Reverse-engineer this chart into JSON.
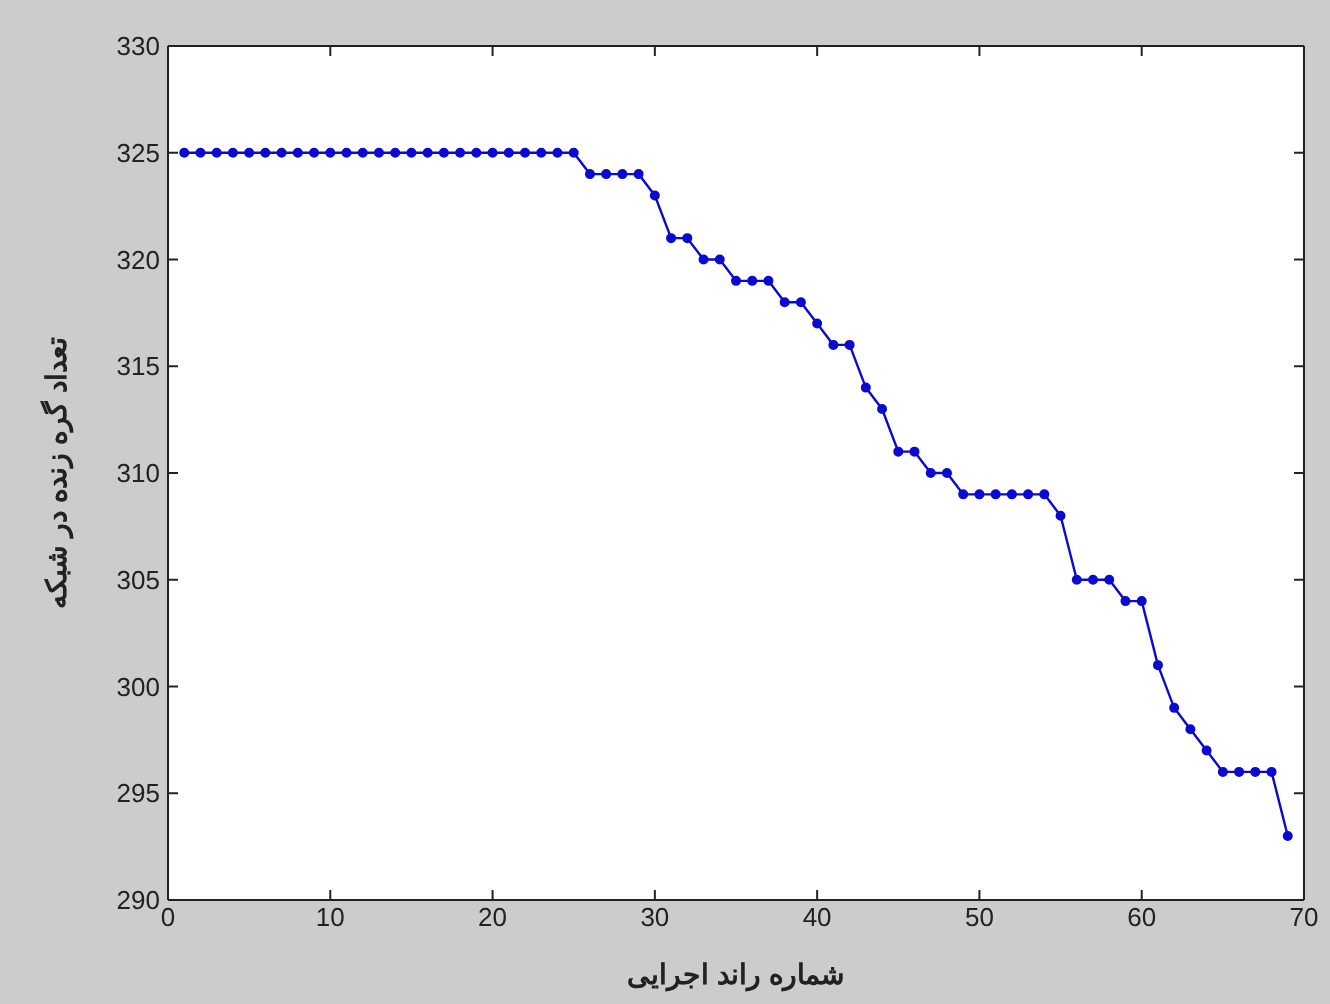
{
  "chart_data": {
    "type": "line",
    "xlabel": "شماره راند اجرایی",
    "ylabel": "تعداد گره زنده در شبکه",
    "x": [
      1,
      2,
      3,
      4,
      5,
      6,
      7,
      8,
      9,
      10,
      11,
      12,
      13,
      14,
      15,
      16,
      17,
      18,
      19,
      20,
      21,
      22,
      23,
      24,
      25,
      26,
      27,
      28,
      29,
      30,
      31,
      32,
      33,
      34,
      35,
      36,
      37,
      38,
      39,
      40,
      41,
      42,
      43,
      44,
      45,
      46,
      47,
      48,
      49,
      50,
      51,
      52,
      53,
      54,
      55,
      56,
      57,
      58,
      59,
      60,
      61,
      62,
      63,
      64,
      65,
      66,
      67,
      68,
      69
    ],
    "series": [
      {
        "color": "#0a0ad2",
        "values": [
          325,
          325,
          325,
          325,
          325,
          325,
          325,
          325,
          325,
          325,
          325,
          325,
          325,
          325,
          325,
          325,
          325,
          325,
          325,
          325,
          325,
          325,
          325,
          325,
          325,
          324,
          324,
          324,
          324,
          323,
          321,
          321,
          320,
          320,
          319,
          319,
          319,
          318,
          318,
          317,
          316,
          316,
          314,
          313,
          311,
          311,
          310,
          310,
          309,
          309,
          309,
          309,
          309,
          309,
          308,
          305,
          305,
          305,
          304,
          304,
          301,
          299,
          298,
          297,
          296,
          296,
          296,
          296,
          293
        ]
      }
    ],
    "xlim": [
      0,
      70
    ],
    "xticks": [
      0,
      10,
      20,
      30,
      40,
      50,
      60,
      70
    ],
    "ylim": [
      290,
      330
    ],
    "yticks": [
      290,
      295,
      300,
      305,
      310,
      315,
      320,
      325,
      330
    ],
    "grid": false,
    "legend": false,
    "marker": "circle",
    "line_style": "solid"
  }
}
